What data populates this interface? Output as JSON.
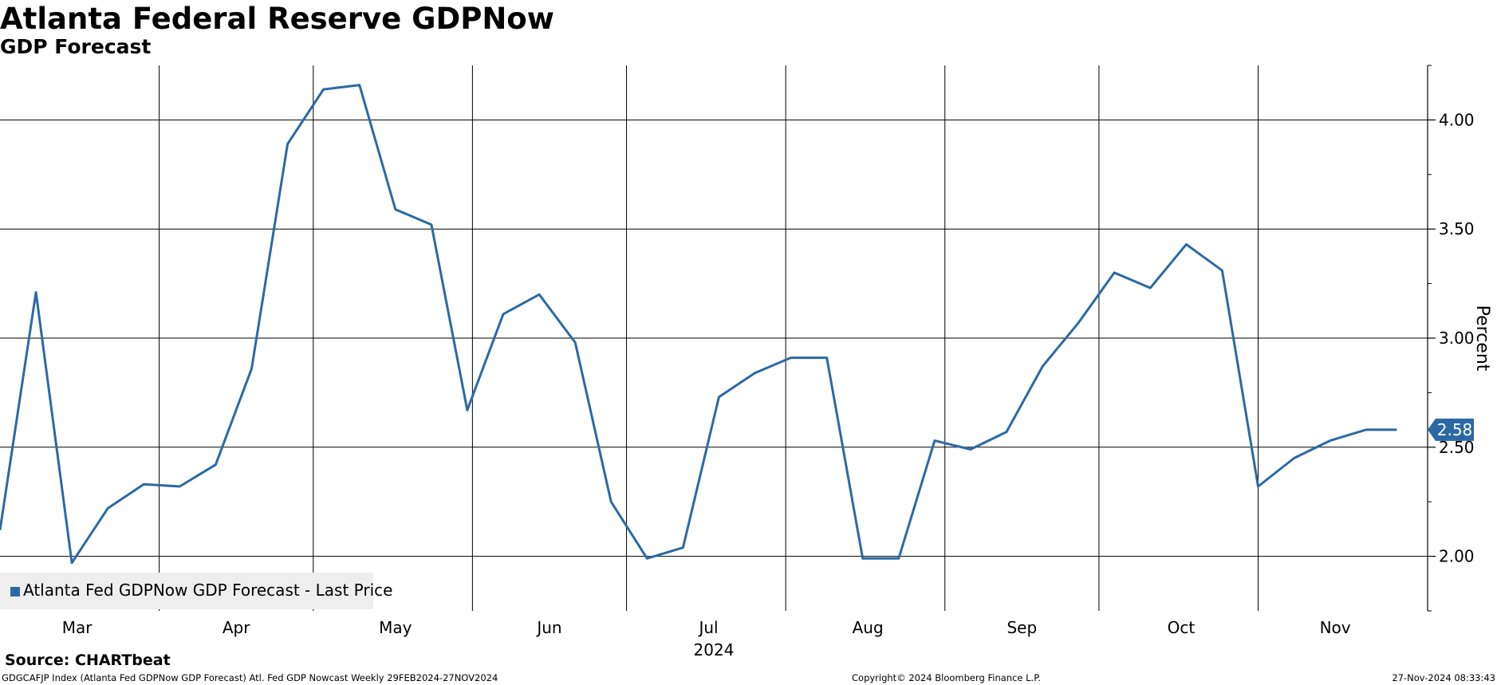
{
  "header": {
    "title": "Atlanta Federal Reserve GDPNow",
    "subtitle": "GDP Forecast"
  },
  "footer": {
    "source": "Source: CHARTbeat",
    "description": "GDGCAFJP Index (Atlanta Fed GDPNow GDP Forecast) Atl. Fed GDP Nowcast  Weekly 29FEB2024-27NOV2024",
    "copyright": "Copyright© 2024 Bloomberg Finance L.P.",
    "timestamp": "27-Nov-2024 08:33:43"
  },
  "colors": {
    "series": "#2b69a6",
    "grid": "#000000",
    "last_price_tag": "#2b69a6"
  },
  "chart_data": {
    "type": "line",
    "title": "Atlanta Federal Reserve GDPNow",
    "subtitle": "GDP Forecast",
    "xlabel": "2024",
    "ylabel": "Percent",
    "y_axis_side": "right",
    "ylim": [
      1.75,
      4.25
    ],
    "yticks": [
      2.0,
      2.5,
      3.0,
      3.5,
      4.0
    ],
    "ytick_labels": [
      "2.00",
      "2.50",
      "3.00",
      "3.50",
      "4.00"
    ],
    "xlim": [
      "2024-02-29",
      "2024-12-03"
    ],
    "x_tick_labels": [
      "Mar",
      "Apr",
      "May",
      "Jun",
      "Jul",
      "Aug",
      "Sep",
      "Oct",
      "Nov"
    ],
    "x_tick_label_dates": [
      "2024-03-15",
      "2024-04-15",
      "2024-05-16",
      "2024-06-15",
      "2024-07-16",
      "2024-08-16",
      "2024-09-15",
      "2024-10-16",
      "2024-11-15"
    ],
    "x_gridline_dates": [
      "2024-03-31",
      "2024-04-30",
      "2024-05-31",
      "2024-06-30",
      "2024-07-31",
      "2024-08-31",
      "2024-09-30",
      "2024-10-31"
    ],
    "year_label": "2024",
    "grid": true,
    "legend": {
      "entries": [
        "Atlanta Fed GDPNow GDP Forecast - Last Price"
      ],
      "placement": "bottom-left"
    },
    "last_value_label": "2.58",
    "series": [
      {
        "name": "Atlanta Fed GDPNow GDP Forecast - Last Price",
        "x": [
          "2024-02-29",
          "2024-03-07",
          "2024-03-14",
          "2024-03-21",
          "2024-03-28",
          "2024-04-04",
          "2024-04-11",
          "2024-04-18",
          "2024-04-25",
          "2024-05-02",
          "2024-05-09",
          "2024-05-16",
          "2024-05-23",
          "2024-05-30",
          "2024-06-06",
          "2024-06-13",
          "2024-06-20",
          "2024-06-27",
          "2024-07-04",
          "2024-07-11",
          "2024-07-18",
          "2024-07-25",
          "2024-08-01",
          "2024-08-08",
          "2024-08-15",
          "2024-08-22",
          "2024-08-29",
          "2024-09-05",
          "2024-09-12",
          "2024-09-19",
          "2024-09-26",
          "2024-10-03",
          "2024-10-10",
          "2024-10-17",
          "2024-10-24",
          "2024-10-31",
          "2024-11-07",
          "2024-11-14",
          "2024-11-21",
          "2024-11-27"
        ],
        "values": [
          2.12,
          3.21,
          1.97,
          2.22,
          2.33,
          2.32,
          2.42,
          2.86,
          3.89,
          4.14,
          4.16,
          3.59,
          3.52,
          2.67,
          3.11,
          3.2,
          2.98,
          2.25,
          1.99,
          2.04,
          2.73,
          2.84,
          2.91,
          2.91,
          1.99,
          1.99,
          2.53,
          2.49,
          2.57,
          2.87,
          3.07,
          3.3,
          3.23,
          3.43,
          3.31,
          2.32,
          2.45,
          2.53,
          2.58,
          2.58
        ]
      }
    ]
  }
}
